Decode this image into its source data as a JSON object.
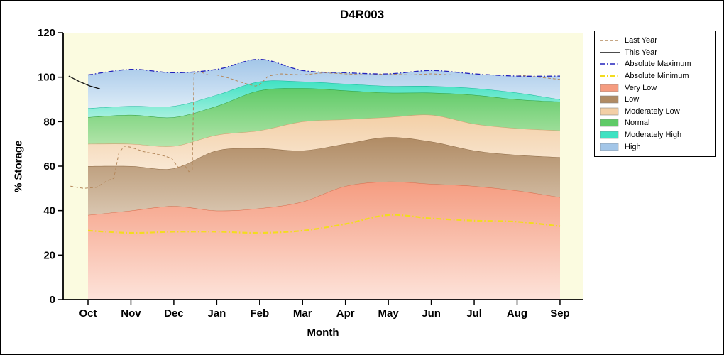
{
  "chart_data": {
    "type": "area",
    "title": "D4R003",
    "xlabel": "Month",
    "ylabel": "% Storage",
    "ylim": [
      0,
      120
    ],
    "yticks": [
      0,
      20,
      40,
      60,
      80,
      100,
      120
    ],
    "categories": [
      "Oct",
      "Nov",
      "Dec",
      "Jan",
      "Feb",
      "Mar",
      "Apr",
      "May",
      "Jun",
      "Jul",
      "Aug",
      "Sep"
    ],
    "plot_bg": "#fbfbe0",
    "legend_position": "outside-right-top",
    "bands": [
      {
        "name": "Very Low",
        "top": [
          38,
          40,
          42,
          40,
          41,
          44,
          51,
          53,
          52,
          51,
          49,
          46
        ],
        "fill_top": "#f59c80",
        "fill_bottom": "#fde3da",
        "edge": "#d86a4a"
      },
      {
        "name": "Low",
        "top": [
          60,
          60,
          59,
          67,
          68,
          67,
          70,
          73,
          71,
          67,
          65,
          64
        ],
        "fill_top": "#b08b64",
        "fill_bottom": "#d9c6b0",
        "edge": "#8d6a45"
      },
      {
        "name": "Moderately Low",
        "top": [
          70,
          70,
          69,
          74,
          76,
          80,
          81,
          82,
          83,
          79,
          77,
          76
        ],
        "fill_top": "#f3cfa6",
        "fill_bottom": "#f9e8d4",
        "edge": "#cfa070"
      },
      {
        "name": "Normal",
        "top": [
          82,
          83,
          82,
          87,
          94,
          95,
          94,
          93,
          93,
          92,
          90,
          89
        ],
        "fill_top": "#5fca67",
        "fill_bottom": "#b4e5ab",
        "edge": "#2e9e3e"
      },
      {
        "name": "Moderately High",
        "top": [
          86,
          87,
          87,
          92,
          98,
          98,
          97,
          96,
          96,
          95,
          93,
          90
        ],
        "fill_top": "#3fe2c2",
        "fill_bottom": "#a7f0df",
        "edge": "#17b99a"
      },
      {
        "name": "High",
        "top": [
          101,
          103.5,
          102,
          103.5,
          108,
          103,
          102,
          101.5,
          103,
          101.5,
          100.5,
          100.5
        ],
        "fill_top": "#a3c6e8",
        "fill_bottom": "#dcebf7",
        "edge": "none"
      }
    ],
    "lines": [
      {
        "name": "Absolute Minimum",
        "style": "dashdot",
        "color": "#f2dc1e",
        "width": 2.2,
        "smooth": true,
        "y": [
          31,
          30,
          30.5,
          30.5,
          30,
          31,
          34,
          38,
          36.5,
          35.5,
          35,
          33
        ]
      },
      {
        "name": "Last Year",
        "style": "dashed",
        "color": "#b4885c",
        "width": 1,
        "smooth": false,
        "x": [
          -0.41,
          -0.1,
          0.2,
          0.45,
          0.6,
          0.72,
          0.85,
          1.0,
          1.3,
          1.7,
          1.95,
          2.1,
          2.25,
          2.35,
          2.43,
          2.47,
          2.6,
          2.8,
          3.0,
          3.3,
          3.6,
          3.9,
          4.0,
          4.2,
          4.5,
          5.0,
          5.5,
          6.0,
          6.5,
          7.0,
          7.5,
          8.0,
          8.5,
          9.0,
          9.5,
          10.0,
          10.5,
          11.0
        ],
        "y": [
          51,
          50,
          50.5,
          53.5,
          54.5,
          66,
          69,
          68.5,
          66.5,
          65,
          63.5,
          59.5,
          60.5,
          57.5,
          58.5,
          101.5,
          102.5,
          101,
          101,
          99.5,
          97.5,
          96,
          96.5,
          100.5,
          101.5,
          101,
          102,
          101.5,
          101,
          101.5,
          101,
          101.5,
          101,
          101,
          101,
          101,
          100,
          99
        ]
      },
      {
        "name": "Absolute Maximum",
        "style": "dashdot",
        "color": "#2222bb",
        "width": 1.3,
        "smooth": true,
        "y": [
          101,
          103.5,
          102,
          103.5,
          108,
          103,
          102,
          101.5,
          103,
          101.5,
          100.5,
          100.5
        ]
      },
      {
        "name": "This Year",
        "style": "solid",
        "color": "#111111",
        "width": 1.3,
        "smooth": false,
        "x": [
          -0.45,
          -0.2,
          0.05,
          0.28
        ],
        "y": [
          100.5,
          98,
          96,
          94.7
        ]
      }
    ],
    "legend": [
      {
        "label": "Last Year",
        "type": "line",
        "color": "#b4885c",
        "style": "dashed"
      },
      {
        "label": "This Year",
        "type": "line",
        "color": "#111111",
        "style": "solid"
      },
      {
        "label": "Absolute Maximum",
        "type": "line",
        "color": "#2222bb",
        "style": "dashdot"
      },
      {
        "label": "Absolute Minimum",
        "type": "line",
        "color": "#f2dc1e",
        "style": "dashdot",
        "width": 2
      },
      {
        "label": "Very Low",
        "type": "fill",
        "color": "#f59c80"
      },
      {
        "label": "Low",
        "type": "fill",
        "color": "#b08b64"
      },
      {
        "label": "Moderately Low",
        "type": "fill",
        "color": "#f3cfa6"
      },
      {
        "label": "Normal",
        "type": "fill",
        "color": "#5fca67"
      },
      {
        "label": "Moderately High",
        "type": "fill",
        "color": "#3fe2c2"
      },
      {
        "label": "High",
        "type": "fill",
        "color": "#a3c6e8"
      }
    ]
  }
}
